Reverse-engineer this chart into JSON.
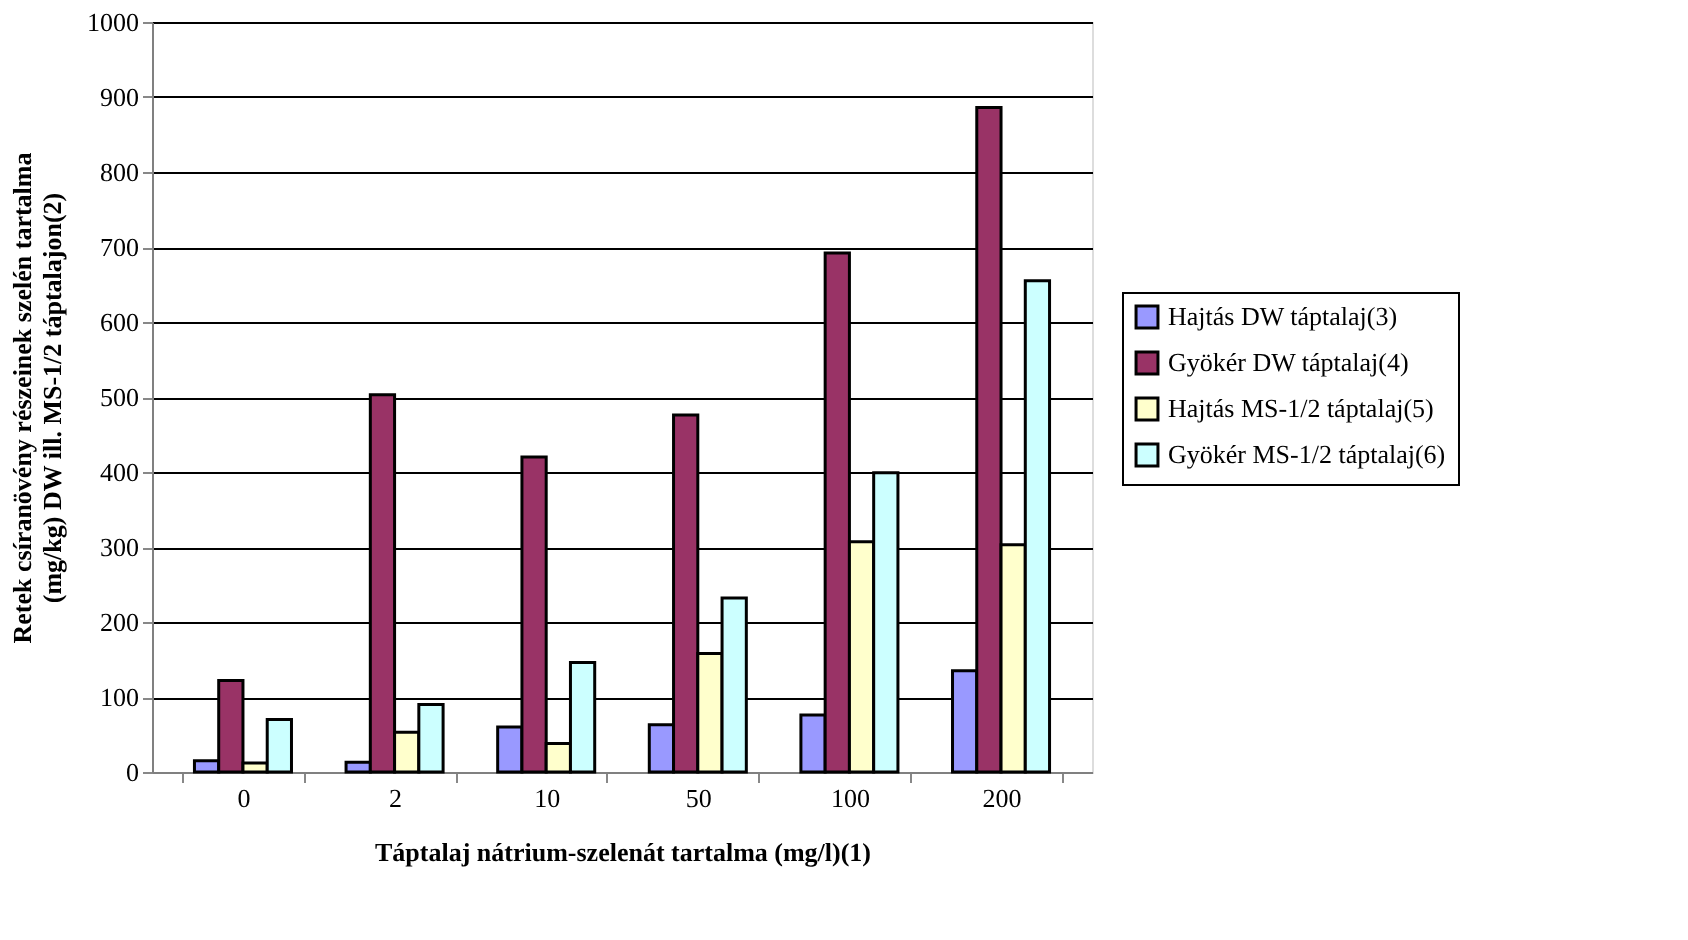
{
  "chart_data": {
    "type": "bar",
    "xlabel": "Táptalaj nátrium-szelenát tartalma (mg/l)(1)",
    "ylabel": "Retek csíranövény részeinek szelén tartalma (mg/kg) DW ill. MS-1/2 táptalajon(2)",
    "categories": [
      "0",
      "2",
      "10",
      "50",
      "100",
      "200"
    ],
    "series": [
      {
        "name": "Hajtás DW táptalaj(3)",
        "color": "#9999ff",
        "values": [
          15,
          13,
          60,
          63,
          76,
          135
        ]
      },
      {
        "name": "Gyökér DW táptalaj(4)",
        "color": "#993366",
        "values": [
          122,
          503,
          420,
          476,
          692,
          886
        ]
      },
      {
        "name": "Hajtás MS-1/2 táptalaj(5)",
        "color": "#ffffcc",
        "values": [
          12,
          53,
          38,
          158,
          307,
          303
        ]
      },
      {
        "name": "Gyökér MS-1/2 táptalaj(6)",
        "color": "#ccffff",
        "values": [
          70,
          90,
          146,
          232,
          399,
          655
        ]
      }
    ],
    "ylim": [
      0,
      1000
    ],
    "yticks": [
      0,
      100,
      200,
      300,
      400,
      500,
      600,
      700,
      800,
      900,
      1000
    ],
    "grid": "y",
    "legend": "right"
  }
}
